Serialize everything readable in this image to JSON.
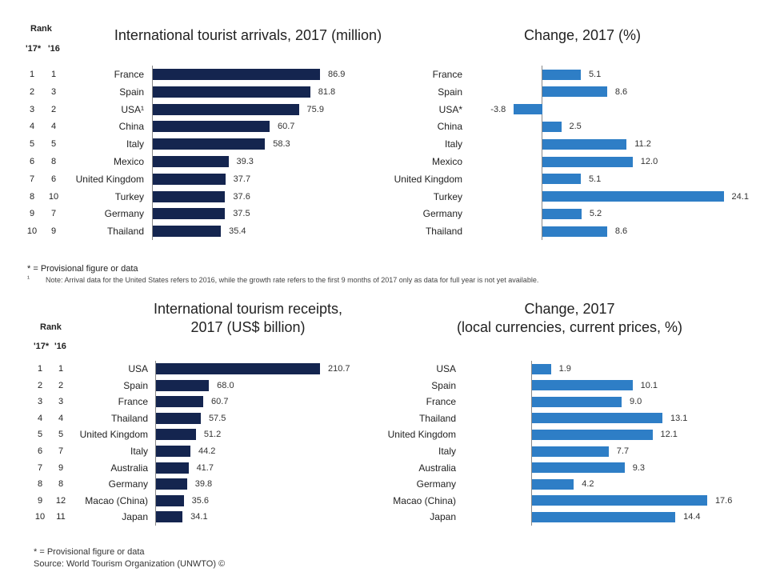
{
  "colors": {
    "dark": "#14254f",
    "blue": "#2e7ec6"
  },
  "rank_header": "Rank",
  "rank_cols": [
    "'17*",
    "'16"
  ],
  "chart_data": [
    {
      "type": "bar",
      "orientation": "horizontal",
      "title": "International tourist arrivals, 2017 (million)",
      "categories": [
        "France",
        "Spain",
        "USA¹",
        "China",
        "Italy",
        "Mexico",
        "United Kingdom",
        "Turkey",
        "Germany",
        "Thailand"
      ],
      "values": [
        86.9,
        81.8,
        75.9,
        60.7,
        58.3,
        39.3,
        37.7,
        37.6,
        37.5,
        35.4
      ],
      "value_labels": [
        "86.9",
        "81.8",
        "75.9",
        "60.7",
        "58.3",
        "39.3",
        "37.7",
        "37.6",
        "37.5",
        "35.4"
      ],
      "rank_2017": [
        "1",
        "2",
        "3",
        "4",
        "5",
        "6",
        "7",
        "8",
        "9",
        "10"
      ],
      "rank_2016": [
        "1",
        "3",
        "2",
        "4",
        "5",
        "8",
        "6",
        "10",
        "7",
        "9"
      ]
    },
    {
      "type": "bar",
      "orientation": "horizontal",
      "title": "Change, 2017 (%)",
      "categories": [
        "France",
        "Spain",
        "USA*",
        "China",
        "Italy",
        "Mexico",
        "United Kingdom",
        "Turkey",
        "Germany",
        "Thailand"
      ],
      "values": [
        5.1,
        8.6,
        -3.8,
        2.5,
        11.2,
        12.0,
        5.1,
        24.1,
        5.2,
        8.6
      ],
      "value_labels": [
        "5.1",
        "8.6",
        "-3.8",
        "2.5",
        "11.2",
        "12.0",
        "5.1",
        "24.1",
        "5.2",
        "8.6"
      ]
    },
    {
      "type": "bar",
      "orientation": "horizontal",
      "title": "International tourism receipts, 2017 (US$ billion)",
      "title_lines": [
        "International tourism receipts,",
        "2017 (US$ billion)"
      ],
      "categories": [
        "USA",
        "Spain",
        "France",
        "Thailand",
        "United Kingdom",
        "Italy",
        "Australia",
        "Germany",
        "Macao (China)",
        "Japan"
      ],
      "values": [
        210.7,
        68.0,
        60.7,
        57.5,
        51.2,
        44.2,
        41.7,
        39.8,
        35.6,
        34.1
      ],
      "value_labels": [
        "210.7",
        "68.0",
        "60.7",
        "57.5",
        "51.2",
        "44.2",
        "41.7",
        "39.8",
        "35.6",
        "34.1"
      ],
      "rank_2017": [
        "1",
        "2",
        "3",
        "4",
        "5",
        "6",
        "7",
        "8",
        "9",
        "10"
      ],
      "rank_2016": [
        "1",
        "2",
        "3",
        "4",
        "5",
        "7",
        "9",
        "8",
        "12",
        "11"
      ]
    },
    {
      "type": "bar",
      "orientation": "horizontal",
      "title": "Change, 2017 (local currencies, current prices, %)",
      "title_lines": [
        "Change, 2017",
        "(local currencies, current prices, %)"
      ],
      "categories": [
        "USA",
        "Spain",
        "France",
        "Thailand",
        "United Kingdom",
        "Italy",
        "Australia",
        "Germany",
        "Macao (China)",
        "Japan"
      ],
      "values": [
        1.9,
        10.1,
        9.0,
        13.1,
        12.1,
        7.7,
        9.3,
        4.2,
        17.6,
        14.4
      ],
      "value_labels": [
        "1.9",
        "10.1",
        "9.0",
        "13.1",
        "12.1",
        "7.7",
        "9.3",
        "4.2",
        "17.6",
        "14.4"
      ]
    }
  ],
  "notes": {
    "provisional_top": "* = Provisional figure or data",
    "note_marker": "¹",
    "note_usa": "Note: Arrival data for the United States refers to 2016, while the growth rate refers to the first 9 months of 2017 only as data for full year is not yet available.",
    "provisional_bottom": "* = Provisional figure or data",
    "source": "Source: World Tourism Organization (UNWTO) ©"
  }
}
